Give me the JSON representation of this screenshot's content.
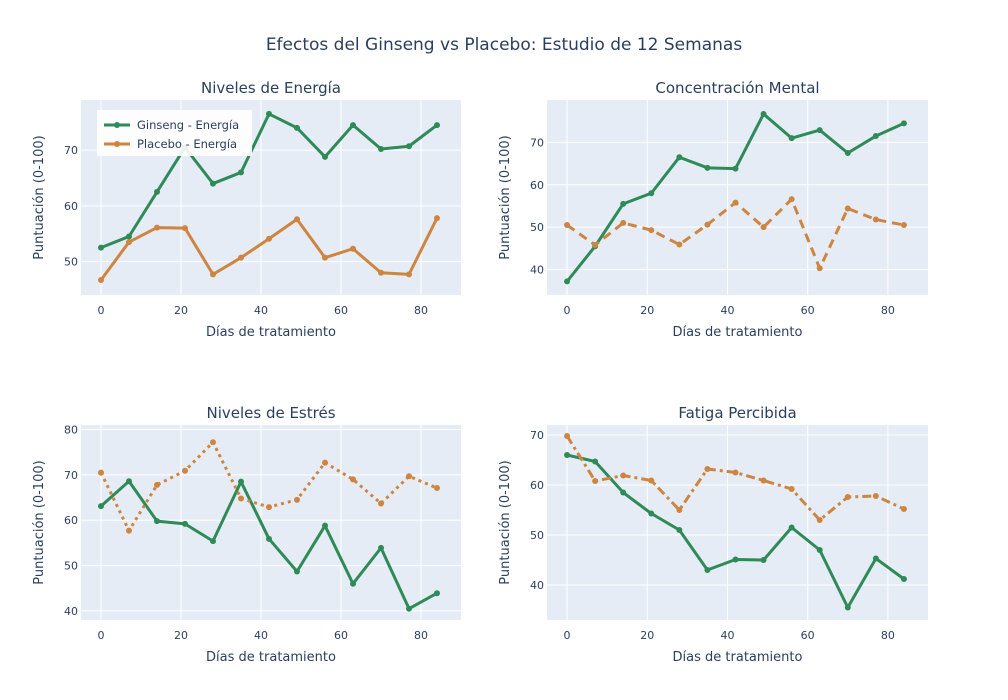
{
  "title": "Efectos del Ginseng vs Placebo: Estudio de 12 Semanas",
  "colors": {
    "ginseng": "#2e8b57",
    "placebo": "#cd853f",
    "plot_bg": "#e5ecf6",
    "grid": "#ffffff",
    "text": "#2a3f5f"
  },
  "legend": {
    "placement": "top-left of first subplot",
    "items": [
      "Ginseng - Energía",
      "Placebo - Energía"
    ]
  },
  "chart_data": [
    {
      "type": "line",
      "title": "Niveles de Energía",
      "xlabel": "Días de tratamiento",
      "ylabel": "Puntuación (0-100)",
      "xlim": [
        -5,
        90
      ],
      "ylim": [
        44,
        79
      ],
      "xticks": [
        0,
        20,
        40,
        60,
        80
      ],
      "yticks": [
        50,
        60,
        70
      ],
      "x": [
        0,
        7,
        14,
        21,
        28,
        35,
        42,
        49,
        56,
        63,
        70,
        77,
        84
      ],
      "series": [
        {
          "name": "Ginseng - Energía",
          "style": "solid",
          "values": [
            52.5,
            54.5,
            62.5,
            70.5,
            64.0,
            66.0,
            76.5,
            74.0,
            68.8,
            74.5,
            70.2,
            70.7,
            74.5
          ]
        },
        {
          "name": "Placebo - Energía",
          "style": "solid",
          "values": [
            46.7,
            53.5,
            56.1,
            56.0,
            47.7,
            50.7,
            54.1,
            57.6,
            50.7,
            52.3,
            48.0,
            47.7,
            57.8
          ]
        }
      ]
    },
    {
      "type": "line",
      "title": "Concentración Mental",
      "xlabel": "Días de tratamiento",
      "ylabel": "Puntuación (0-100)",
      "xlim": [
        -5,
        90
      ],
      "ylim": [
        34,
        80
      ],
      "xticks": [
        0,
        20,
        40,
        60,
        80
      ],
      "yticks": [
        40,
        50,
        60,
        70
      ],
      "x": [
        0,
        7,
        14,
        21,
        28,
        35,
        42,
        49,
        56,
        63,
        70,
        77,
        84
      ],
      "series": [
        {
          "style": "solid",
          "values": [
            37.2,
            45.5,
            55.5,
            58.0,
            66.5,
            64.0,
            63.8,
            76.7,
            71.0,
            72.9,
            67.5,
            71.5,
            74.5
          ]
        },
        {
          "style": "dash",
          "values": [
            50.5,
            45.8,
            51.0,
            49.3,
            45.9,
            50.6,
            55.8,
            50.0,
            56.6,
            40.3,
            54.4,
            51.8,
            50.5
          ]
        }
      ]
    },
    {
      "type": "line",
      "title": "Niveles de Estrés",
      "xlabel": "Días de tratamiento",
      "ylabel": "Puntuación (0-100)",
      "xlim": [
        -5,
        90
      ],
      "ylim": [
        38,
        81
      ],
      "xticks": [
        0,
        20,
        40,
        60,
        80
      ],
      "yticks": [
        40,
        50,
        60,
        70,
        80
      ],
      "x": [
        0,
        7,
        14,
        21,
        28,
        35,
        42,
        49,
        56,
        63,
        70,
        77,
        84
      ],
      "series": [
        {
          "style": "solid",
          "values": [
            63.1,
            68.6,
            59.8,
            59.2,
            55.4,
            68.5,
            55.9,
            48.7,
            58.8,
            46.0,
            53.9,
            40.5,
            43.9
          ]
        },
        {
          "style": "dot",
          "values": [
            70.5,
            57.7,
            67.8,
            70.9,
            77.2,
            64.8,
            62.9,
            64.5,
            72.7,
            69.0,
            63.7,
            69.7,
            67.1
          ]
        }
      ]
    },
    {
      "type": "line",
      "title": "Fatiga Percibida",
      "xlabel": "Días de tratamiento",
      "ylabel": "Puntuación (0-100)",
      "xlim": [
        -5,
        90
      ],
      "ylim": [
        33,
        72
      ],
      "xticks": [
        0,
        20,
        40,
        60,
        80
      ],
      "yticks": [
        40,
        50,
        60,
        70
      ],
      "x": [
        0,
        7,
        14,
        21,
        28,
        35,
        42,
        49,
        56,
        63,
        70,
        77,
        84
      ],
      "series": [
        {
          "style": "solid",
          "values": [
            66.0,
            64.7,
            58.5,
            54.3,
            51.0,
            43.0,
            45.1,
            45.0,
            51.5,
            47.0,
            35.5,
            45.3,
            41.2
          ]
        },
        {
          "style": "dashdot",
          "values": [
            69.8,
            60.8,
            61.9,
            60.9,
            55.0,
            63.2,
            62.5,
            60.9,
            59.2,
            53.0,
            57.6,
            57.8,
            55.2
          ]
        }
      ]
    }
  ]
}
